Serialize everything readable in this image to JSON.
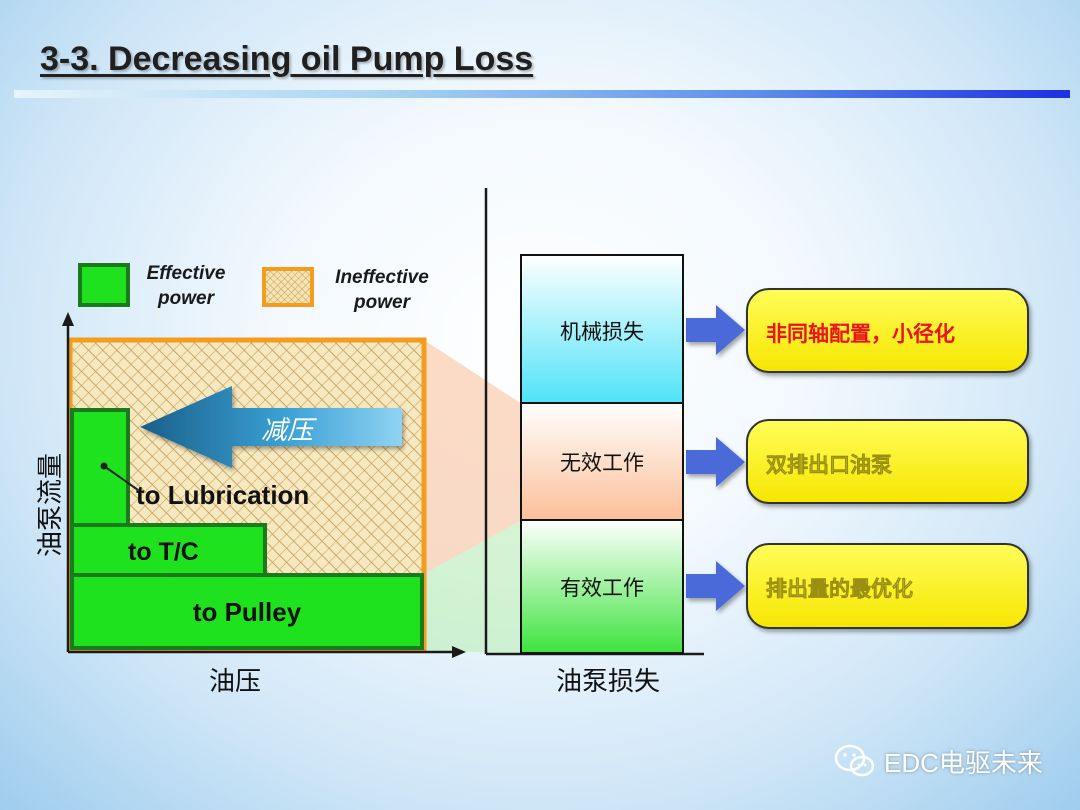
{
  "title": "3-3. Decreasing oil Pump Loss",
  "legend": {
    "effective": {
      "line1": "Effective",
      "line2": "power"
    },
    "ineffective": {
      "line1": "Ineffective",
      "line2": "power"
    }
  },
  "left_chart": {
    "y_axis_label": "油泵流量",
    "x_axis_label": "油压",
    "arrow_label": "减压",
    "blocks": {
      "lubrication": "to Lubrication",
      "tc": "to T/C",
      "pulley": "to Pulley"
    }
  },
  "right_chart": {
    "x_axis_label": "油泵损失",
    "segments": [
      {
        "label": "机械损失"
      },
      {
        "label": "无效工作"
      },
      {
        "label": "有效工作"
      }
    ]
  },
  "measures": [
    {
      "text": "非同轴配置，小径化",
      "color": "#e8131b"
    },
    {
      "text": "双排出口油泵",
      "color": "#f5ee4a"
    },
    {
      "text": "排出量的最优化",
      "color": "#f5ee4a"
    }
  ],
  "watermark": {
    "text": "EDC电驱未来"
  },
  "colors": {
    "effective_green": "#1ee21e",
    "ineffective_border": "#f39c1e",
    "measure_box": "#fffc00",
    "arrow_blue": "#4a6ad8"
  }
}
